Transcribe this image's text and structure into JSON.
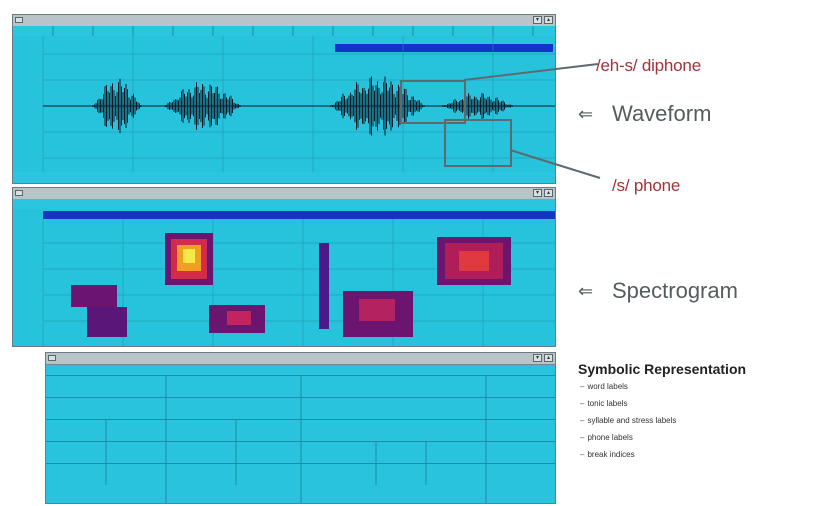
{
  "annotations": {
    "diphone_label": "/eh-s/ diphone",
    "phone_label": "/s/ phone",
    "waveform_label": "Waveform",
    "spectrogram_label": "Spectrogram",
    "arrow_glyph": "⇐"
  },
  "symbolic": {
    "title": "Symbolic Representation",
    "items": [
      "word labels",
      "tonic labels",
      "syllable and stress labels",
      "phone labels",
      "break indices"
    ],
    "bullet": "–"
  },
  "colors": {
    "window_bg": "#27c2dc",
    "waveform": "#0b1d2a",
    "selection_bar": "#1433c8",
    "annotation_red": "#a8303a",
    "annotation_gray": "#555c60"
  },
  "icons": {
    "system_menu": "window-menu-icon",
    "minimize": "minimize-icon",
    "maximize": "maximize-icon"
  }
}
